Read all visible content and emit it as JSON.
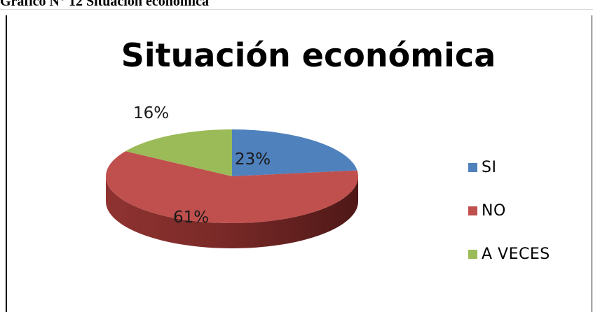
{
  "caption": "Gráfico N° 12 Situación económica",
  "chart_data": {
    "type": "pie",
    "title": "Situación económica",
    "categories": [
      "SI",
      "NO",
      "A VECES"
    ],
    "values": [
      23,
      61,
      16
    ],
    "labels": [
      "23%",
      "61%",
      "16%"
    ],
    "colors": [
      "#4f81bd",
      "#c0504d",
      "#9bbb59"
    ],
    "legend": "right",
    "style": "3d"
  }
}
